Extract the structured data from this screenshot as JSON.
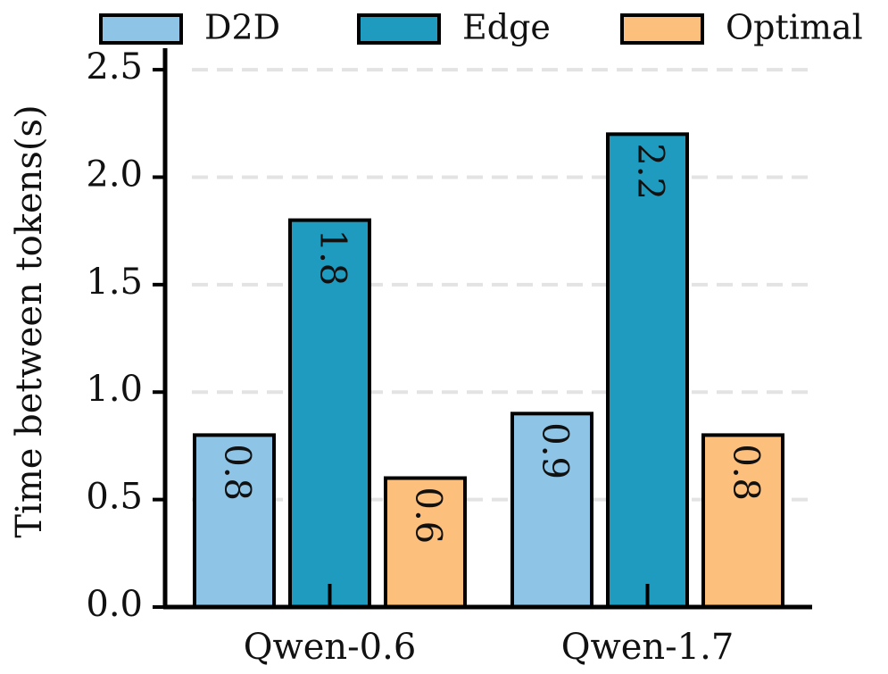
{
  "chart_data": {
    "type": "bar",
    "categories": [
      "Qwen-0.6",
      "Qwen-1.7"
    ],
    "y_label": "Time between tokens(s)",
    "series": [
      {
        "name": "D2D",
        "color": "#8ec5e6",
        "values": [
          0.8,
          0.9
        ]
      },
      {
        "name": "Edge",
        "color": "#1f9bbf",
        "values": [
          1.8,
          2.2
        ]
      },
      {
        "name": "Optimal",
        "color": "#fdbf7c",
        "values": [
          0.6,
          0.8
        ]
      }
    ],
    "ylim": [
      0,
      2.6
    ],
    "yticks": [
      {
        "value": 0,
        "label": "0.0"
      },
      0.5,
      {
        "value": 1,
        "label": "1.0"
      },
      1.5,
      {
        "value": 2,
        "label": "2.0"
      },
      2.5
    ],
    "grid": true,
    "legend": "top"
  }
}
